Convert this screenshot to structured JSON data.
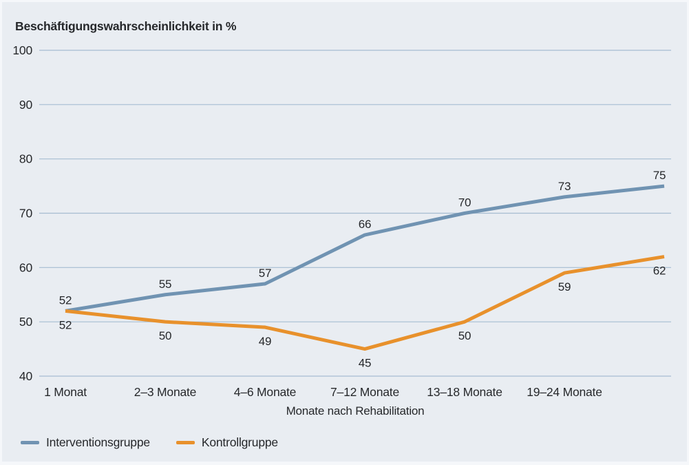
{
  "figure": {
    "title": "Beschäftigungswahrscheinlichkeit in %",
    "x_axis_title": "Monate nach Rehabilitation"
  },
  "chart_data": {
    "type": "line",
    "title": "Beschäftigungswahrscheinlichkeit in %",
    "xlabel": "Monate nach Rehabilitation",
    "ylabel": "",
    "categories": [
      "1 Monat",
      "2–3 Monate",
      "4–6 Monate",
      "7–12 Monate",
      "13–18 Monate",
      "19–24 Monate"
    ],
    "extra_unlabeled_point": true,
    "y_ticks": [
      40,
      50,
      60,
      70,
      80,
      90,
      100
    ],
    "ylim": [
      40,
      100
    ],
    "grid": true,
    "legend_position": "bottom-left",
    "series": [
      {
        "name": "Interventionsgruppe",
        "color": "#7093b2",
        "values": [
          52,
          55,
          57,
          66,
          70,
          73,
          75
        ],
        "label_side": "above"
      },
      {
        "name": "Kontrollgruppe",
        "color": "#e8912c",
        "values": [
          52,
          50,
          49,
          45,
          50,
          59,
          62
        ],
        "label_side": "below"
      }
    ]
  },
  "colors": {
    "background": "#e9edf2",
    "frame_border": "#f5f7fa",
    "gridline": "#a6bdd1",
    "text": "#26282b"
  }
}
